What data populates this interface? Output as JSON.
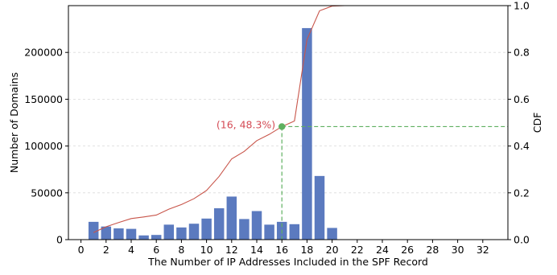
{
  "chart_data": {
    "type": "bar",
    "xlabel": "The Number of IP Addresses Included in the SPF Record",
    "ylabel": "Number of Domains",
    "y2label": "CDF",
    "xlim": [
      -1,
      34
    ],
    "ylim": [
      0,
      250000
    ],
    "y2lim": [
      0,
      1.0
    ],
    "x_ticks": [
      0,
      2,
      4,
      6,
      8,
      10,
      12,
      14,
      16,
      18,
      20,
      22,
      24,
      26,
      28,
      30,
      32
    ],
    "y_ticks": [
      0,
      50000,
      100000,
      150000,
      200000
    ],
    "y2_ticks": [
      0.0,
      0.2,
      0.4,
      0.6,
      0.8,
      1.0
    ],
    "y2_tick_labels": [
      "0.0",
      "0.2",
      "0.4",
      "0.6",
      "0.8",
      "1.0"
    ],
    "grid": "horizontal",
    "bar_color": "#5b7abf",
    "cdf_color": "#c8554a",
    "marker_color": "#5fb060",
    "guide_color": "#5fb060",
    "annotation_color": "#d44b55",
    "bars": {
      "x": [
        1,
        2,
        3,
        4,
        5,
        6,
        7,
        8,
        9,
        10,
        11,
        12,
        13,
        14,
        15,
        16,
        17,
        18,
        19,
        20
      ],
      "values": [
        19000,
        14000,
        12000,
        11500,
        4500,
        5000,
        16000,
        13000,
        17000,
        22500,
        33500,
        46000,
        22000,
        30500,
        16000,
        19000,
        16500,
        226000,
        68000,
        12500
      ]
    },
    "cdf": {
      "x": [
        1,
        2,
        3,
        4,
        5,
        6,
        7,
        8,
        9,
        10,
        11,
        12,
        13,
        14,
        15,
        16,
        17,
        18,
        19,
        20,
        21,
        22,
        23,
        24,
        25,
        26,
        27,
        28,
        29,
        30,
        31,
        32
      ],
      "y": [
        0.03,
        0.055,
        0.073,
        0.09,
        0.097,
        0.105,
        0.13,
        0.15,
        0.175,
        0.21,
        0.27,
        0.345,
        0.377,
        0.423,
        0.45,
        0.483,
        0.507,
        0.855,
        0.978,
        0.998,
        1.0,
        1.0,
        1.0,
        1.0,
        1.0,
        1.0,
        1.0,
        1.0,
        1.0,
        1.0,
        1.0,
        1.0
      ]
    },
    "highlight": {
      "x": 16,
      "y": 0.483,
      "label": "(16, 48.3%)"
    }
  }
}
